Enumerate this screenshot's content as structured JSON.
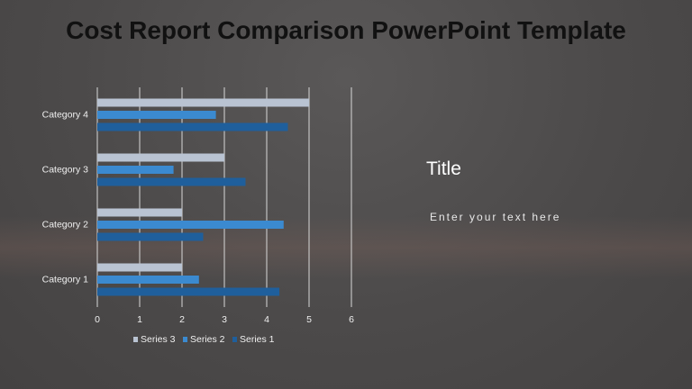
{
  "title": "Cost Report Comparison PowerPoint Template",
  "text_box": {
    "heading": "Title",
    "body": "Enter your text here"
  },
  "chart_data": {
    "type": "bar",
    "orientation": "horizontal",
    "categories": [
      "Category 1",
      "Category 2",
      "Category 3",
      "Category 4"
    ],
    "series": [
      {
        "name": "Series 1",
        "color": "#1f5f9c",
        "values": [
          4.3,
          2.5,
          3.5,
          4.5
        ]
      },
      {
        "name": "Series 2",
        "color": "#3b8ad0",
        "values": [
          2.4,
          4.4,
          1.8,
          2.8
        ]
      },
      {
        "name": "Series 3",
        "color": "#b9c3d2",
        "values": [
          2,
          2,
          3,
          5
        ]
      }
    ],
    "xlim": [
      0,
      6
    ],
    "xticks": [
      0,
      1,
      2,
      3,
      4,
      5,
      6
    ],
    "grid": true,
    "legend": "bottom"
  }
}
